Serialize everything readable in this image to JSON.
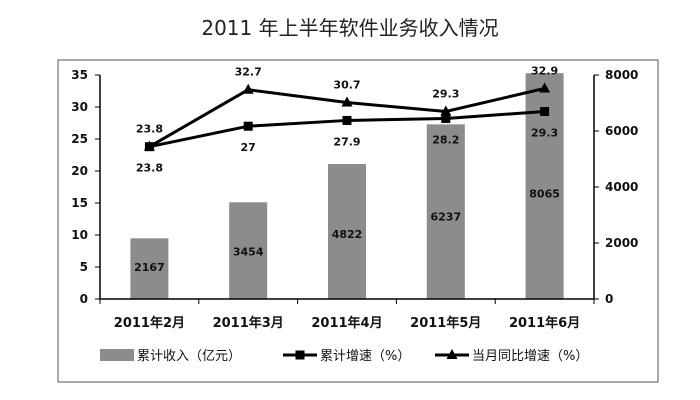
{
  "title": "2011 年上半年软件业务收入情况",
  "chart_data": {
    "type": "bar",
    "categories": [
      "2011年2月",
      "2011年3月",
      "2011年4月",
      "2011年5月",
      "2011年6月"
    ],
    "left_axis": {
      "ticks": [
        "0",
        "5",
        "10",
        "15",
        "20",
        "25",
        "30",
        "35"
      ],
      "ylim": [
        0,
        35
      ]
    },
    "right_axis": {
      "ticks": [
        "0",
        "2000",
        "4000",
        "6000",
        "8000"
      ],
      "ylim": [
        0,
        8000
      ]
    },
    "grid": false,
    "legend_position": "bottom",
    "series": [
      {
        "name": "累计收入（亿元）",
        "type": "bar",
        "axis": "right",
        "color": "#8c8c8c",
        "values": [
          2167,
          3454,
          4822,
          6237,
          8065
        ],
        "labels": [
          "2167",
          "3454",
          "4822",
          "6237",
          "8065"
        ]
      },
      {
        "name": "累计增速（%）",
        "type": "line",
        "axis": "left",
        "marker": "square",
        "color": "#000000",
        "values": [
          23.8,
          27,
          27.9,
          28.2,
          29.3
        ],
        "labels": [
          "23.8",
          "27",
          "27.9",
          "28.2",
          "29.3"
        ]
      },
      {
        "name": "当月同比增速（%）",
        "type": "line",
        "axis": "left",
        "marker": "triangle",
        "color": "#000000",
        "values": [
          23.8,
          32.7,
          30.7,
          29.3,
          32.9
        ],
        "labels": [
          "23.8",
          "32.7",
          "30.7",
          "29.3",
          "32.9"
        ]
      }
    ]
  }
}
